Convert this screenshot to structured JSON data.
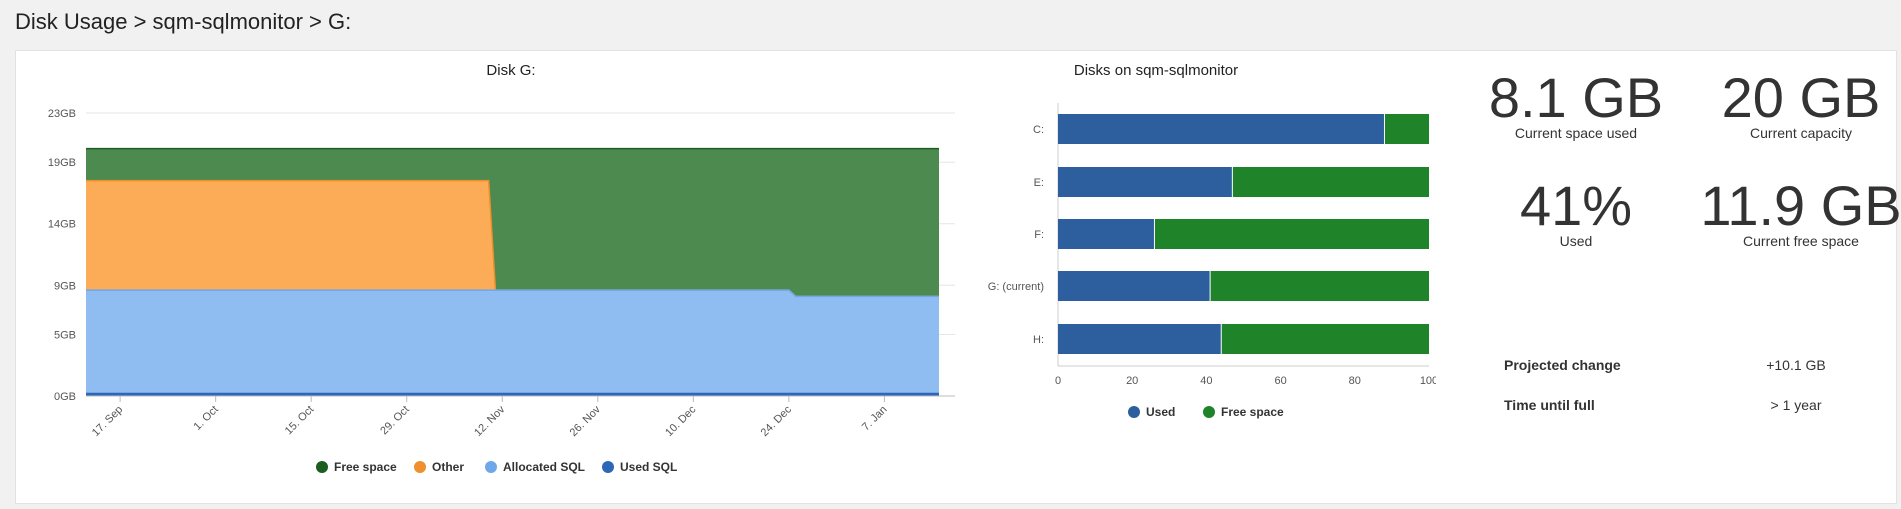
{
  "breadcrumb": "Disk Usage > sqm-sqlmonitor > G:",
  "area_chart": {
    "title": "Disk G:",
    "y_ticks": [
      "0GB",
      "5GB",
      "9GB",
      "14GB",
      "19GB",
      "23GB"
    ],
    "x_ticks": [
      "17. Sep",
      "1. Oct",
      "15. Oct",
      "29. Oct",
      "12. Nov",
      "26. Nov",
      "10. Dec",
      "24. Dec",
      "7. Jan"
    ],
    "legend": [
      {
        "label": "Free space",
        "color": "#1b5e20"
      },
      {
        "label": "Other",
        "color": "#ef8f2e"
      },
      {
        "label": "Allocated SQL",
        "color": "#6fa8e8"
      },
      {
        "label": "Used SQL",
        "color": "#2e67b8"
      }
    ]
  },
  "bar_chart": {
    "title": "Disks on sqm-sqlmonitor",
    "x_ticks": [
      "0",
      "20",
      "40",
      "60",
      "80",
      "100"
    ],
    "legend": [
      {
        "label": "Used",
        "color": "#2d5f9e"
      },
      {
        "label": "Free space",
        "color": "#1e8329"
      }
    ]
  },
  "chart_data": [
    {
      "type": "area",
      "title": "Disk G:",
      "x": [
        "2019-09-12",
        "2019-11-10",
        "2019-11-11",
        "2019-12-24",
        "2019-12-25",
        "2020-01-15"
      ],
      "ylim": [
        0,
        23
      ],
      "yunit": "GB",
      "stacked": true,
      "series": [
        {
          "name": "Used SQL",
          "values": [
            0.2,
            0.2,
            0.2,
            0.2,
            0.2,
            0.2
          ]
        },
        {
          "name": "Allocated SQL",
          "values": [
            8.4,
            8.4,
            8.4,
            8.4,
            7.9,
            7.9
          ]
        },
        {
          "name": "Other",
          "values": [
            8.9,
            8.9,
            0,
            0,
            0,
            0
          ]
        },
        {
          "name": "Free space",
          "values": [
            2.6,
            2.6,
            11.5,
            11.5,
            12.0,
            12.0
          ]
        }
      ],
      "legend_position": "bottom"
    },
    {
      "type": "bar",
      "orientation": "horizontal",
      "stacked": true,
      "title": "Disks on sqm-sqlmonitor",
      "categories": [
        "C:",
        "E:",
        "F:",
        "G: (current)",
        "H:"
      ],
      "xlim": [
        0,
        100
      ],
      "series": [
        {
          "name": "Used",
          "values": [
            88,
            47,
            26,
            41,
            44
          ]
        },
        {
          "name": "Free space",
          "values": [
            12,
            53,
            74,
            59,
            56
          ]
        }
      ],
      "legend_position": "bottom"
    }
  ],
  "stats": [
    {
      "value": "8.1 GB",
      "label": "Current space used"
    },
    {
      "value": "20 GB",
      "label": "Current capacity"
    },
    {
      "value": "41%",
      "label": "Used"
    },
    {
      "value": "11.9 GB",
      "label": "Current free space"
    }
  ],
  "projection": {
    "change_label": "Projected change",
    "change_value": "+10.1 GB",
    "full_label": "Time until full",
    "full_value": "> 1 year"
  }
}
